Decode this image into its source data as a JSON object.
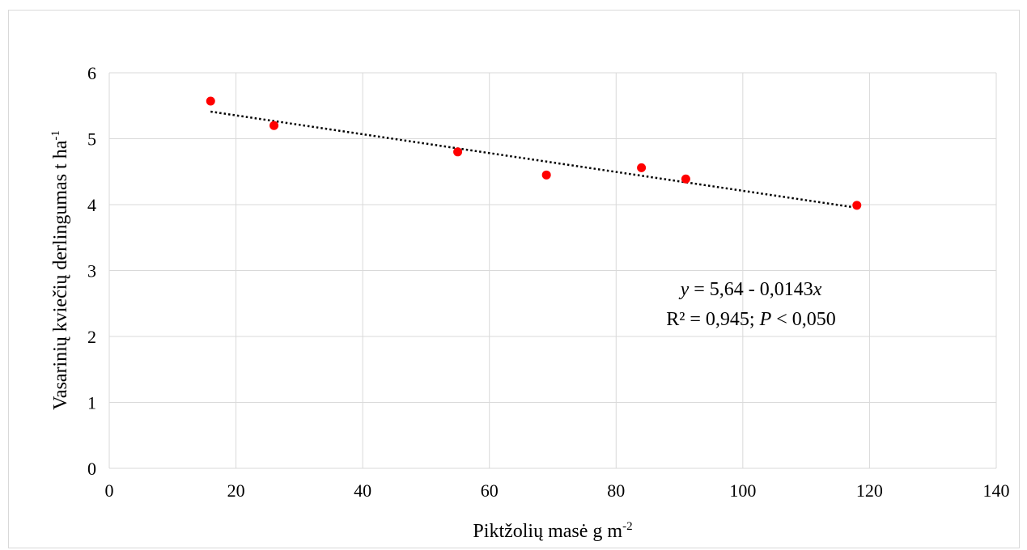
{
  "chart_data": {
    "type": "scatter",
    "xlabel": "Piktžolių masė g m",
    "xlabel_sup": "-2",
    "ylabel": "Vasarinių kviečių derlingumas t ha",
    "ylabel_sup": "-1",
    "xlim": [
      0,
      140
    ],
    "ylim": [
      0,
      6
    ],
    "xticks": [
      0,
      20,
      40,
      60,
      80,
      100,
      120,
      140
    ],
    "yticks": [
      0,
      1,
      2,
      3,
      4,
      5,
      6
    ],
    "grid": true,
    "colors": {
      "points": "#ff0000",
      "trendline": "#000000",
      "grid": "#d9d9d9"
    },
    "series": [
      {
        "x": [
          16,
          26,
          55,
          69,
          84,
          91,
          118
        ],
        "y": [
          5.57,
          5.2,
          4.8,
          4.45,
          4.56,
          4.39,
          3.99
        ]
      }
    ],
    "trendline": {
      "style": "dotted",
      "intercept": 5.64,
      "slope": -0.0143,
      "x_range": [
        16,
        118
      ]
    },
    "annotation": {
      "line1_y": "y",
      "line1_rest": " = 5,64 - 0,0143",
      "line1_x": "x",
      "line2_r": "R² = 0,945; ",
      "line2_p": "P",
      "line2_rest": " < 0,050"
    }
  }
}
